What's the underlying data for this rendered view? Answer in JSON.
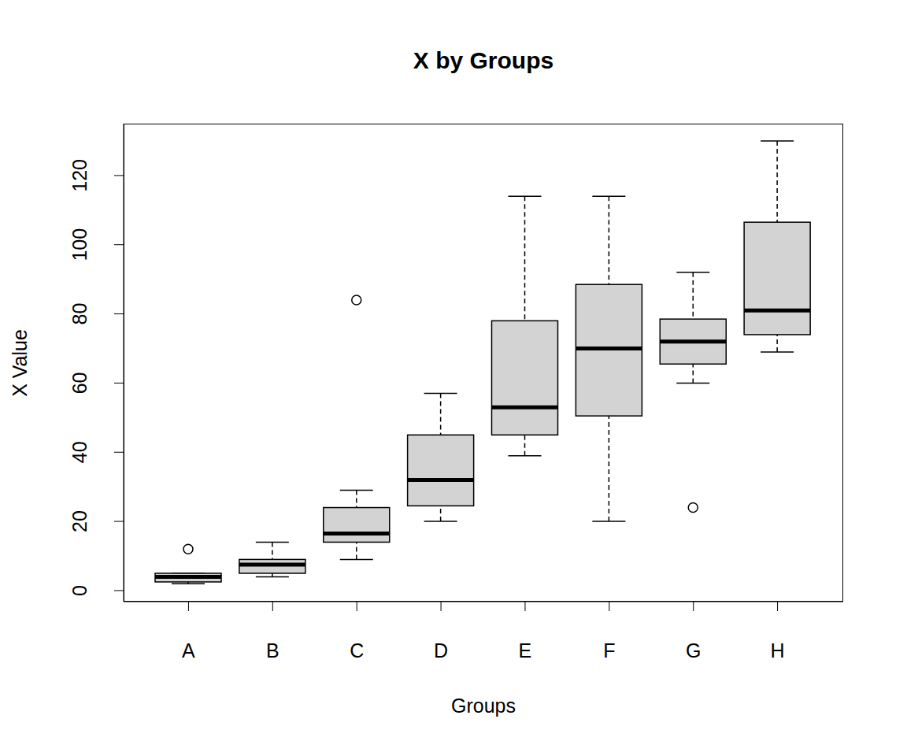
{
  "chart_data": {
    "type": "box",
    "title": "X by Groups",
    "x_label": "Groups",
    "y_label": "X Value",
    "categories": [
      "A",
      "B",
      "C",
      "D",
      "E",
      "F",
      "G",
      "H"
    ],
    "whisker_low": [
      2,
      4,
      9,
      20,
      39,
      20,
      60,
      69
    ],
    "q1": [
      2.5,
      5,
      14,
      24.5,
      45,
      50.5,
      65.5,
      74
    ],
    "median": [
      4,
      7.5,
      16.5,
      32,
      53,
      70,
      72,
      81
    ],
    "q3": [
      5,
      9,
      24,
      45,
      78,
      88.5,
      78.5,
      106.5
    ],
    "whisker_high": [
      5,
      14,
      29,
      57,
      114,
      114,
      92,
      130
    ],
    "outliers": [
      [
        12
      ],
      [],
      [
        84
      ],
      [],
      [],
      [],
      [
        24
      ],
      []
    ],
    "color": "#d3d3d3",
    "ylim": [
      -3.2,
      135
    ],
    "yticks": [
      0,
      20,
      40,
      60,
      80,
      100,
      120
    ]
  }
}
